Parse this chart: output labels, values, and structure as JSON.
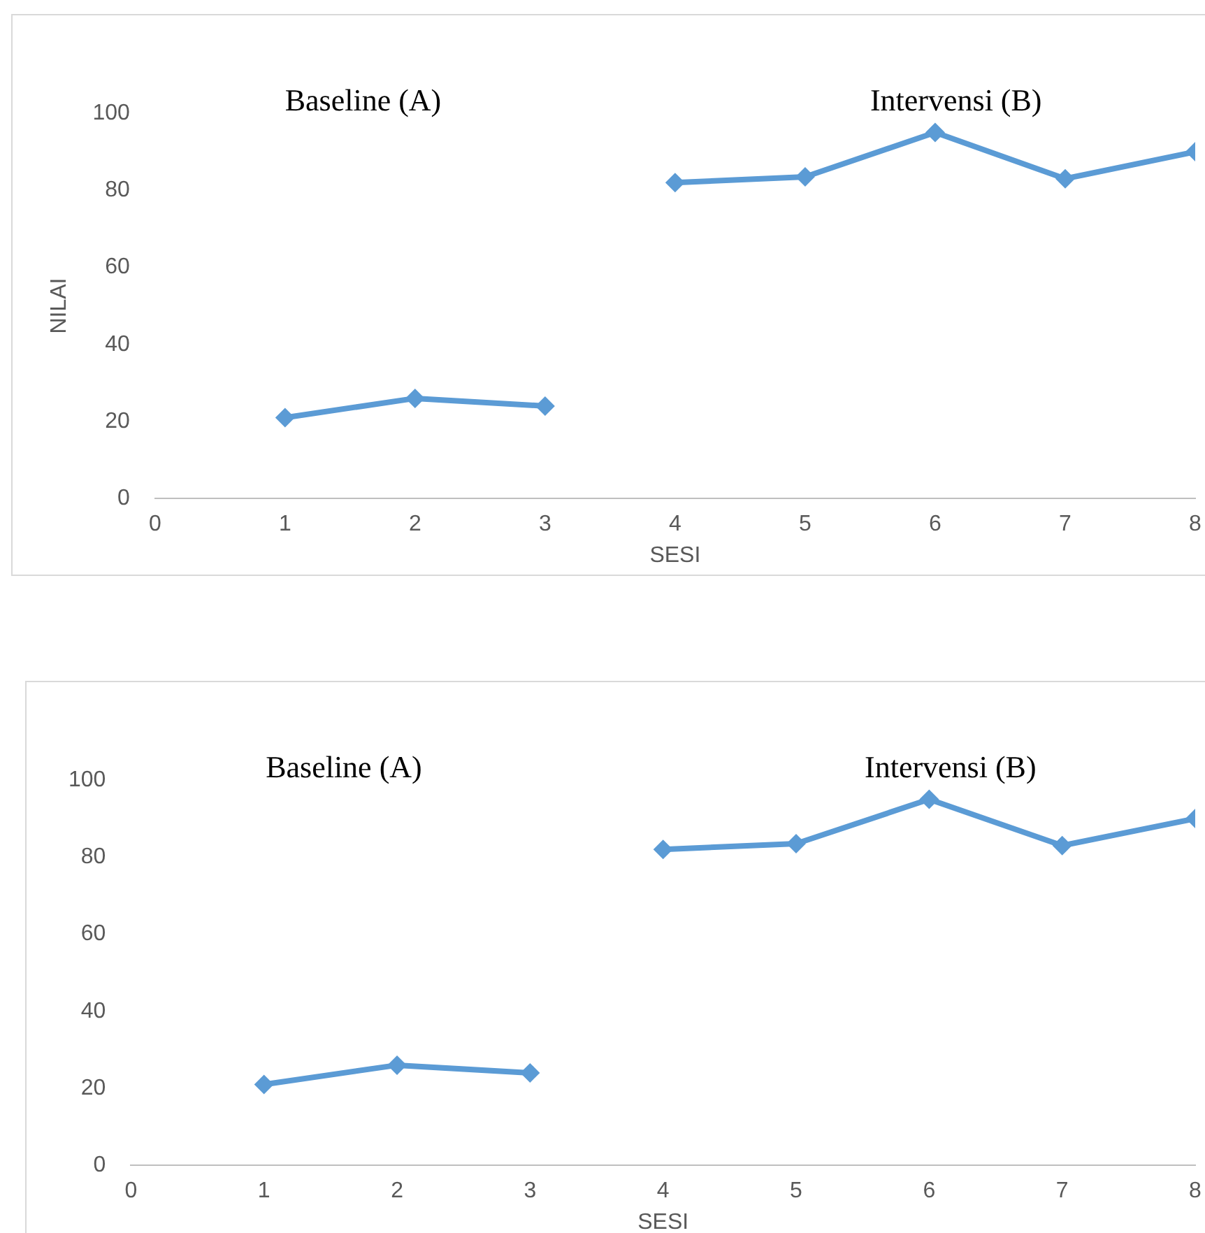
{
  "chart_data": [
    {
      "type": "line",
      "xlabel": "SESI",
      "ylabel": "NILAI",
      "xlim": [
        0,
        8
      ],
      "xticks": [
        0,
        1,
        2,
        3,
        4,
        5,
        6,
        7,
        8
      ],
      "ylim": [
        0,
        100
      ],
      "yticks": [
        0,
        20,
        40,
        60,
        80,
        100
      ],
      "grid": false,
      "legend": false,
      "marker": "diamond",
      "line_style": "solid",
      "annotations": [
        "Baseline (A)",
        "Intervensi (B)"
      ],
      "series": [
        {
          "color": "#5b9bd5",
          "x": [
            1,
            2,
            3
          ],
          "values": [
            21,
            26,
            24
          ]
        },
        {
          "color": "#5b9bd5",
          "x": [
            4,
            5,
            6,
            7,
            8
          ],
          "values": [
            82,
            83.5,
            95,
            83,
            90
          ]
        }
      ]
    },
    {
      "type": "line",
      "xlabel": "SESI",
      "xlim": [
        0,
        8
      ],
      "xticks": [
        0,
        1,
        2,
        3,
        4,
        5,
        6,
        7,
        8
      ],
      "ylim": [
        0,
        100
      ],
      "yticks": [
        0,
        20,
        40,
        60,
        80,
        100
      ],
      "grid": false,
      "legend": false,
      "marker": "diamond",
      "line_style": "solid",
      "annotations": [
        "Baseline (A)",
        "Intervensi (B)"
      ],
      "series": [
        {
          "color": "#5b9bd5",
          "x": [
            1,
            2,
            3
          ],
          "values": [
            21,
            26,
            24
          ]
        },
        {
          "color": "#5b9bd5",
          "x": [
            4,
            5,
            6,
            7,
            8
          ],
          "values": [
            82,
            83.5,
            95,
            83,
            90
          ]
        }
      ]
    }
  ]
}
